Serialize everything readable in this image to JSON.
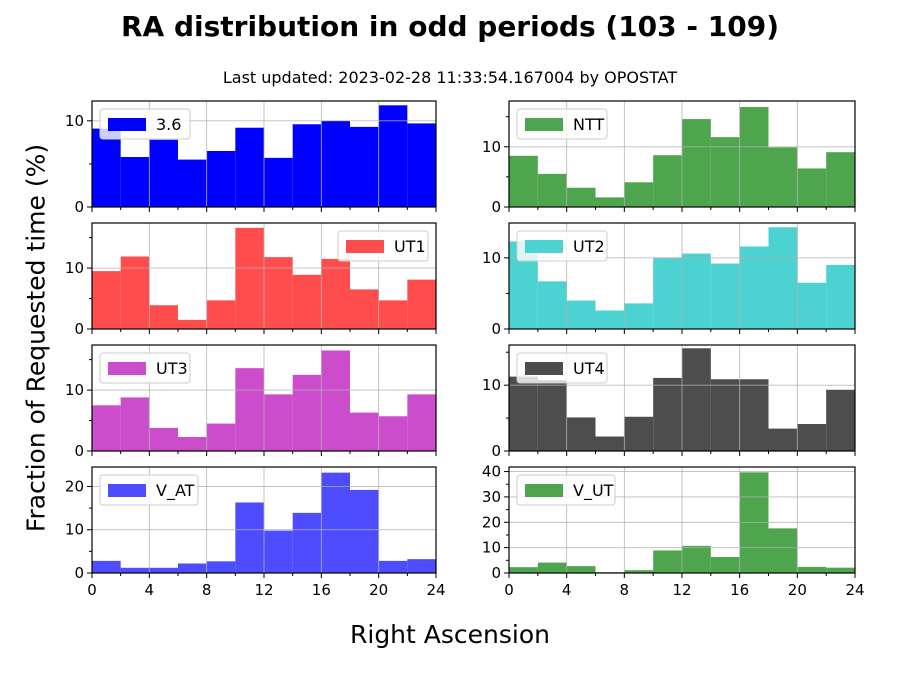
{
  "title": "RA distribution in odd periods (103 - 109)",
  "subtitle": "Last updated: 2023-02-28 11:33:54.167004 by OPOSTAT",
  "ylabel": "Fraction of Requested time (%)",
  "xlabel": "Right Ascension",
  "chart_data": [
    {
      "type": "bar",
      "name": "3.6",
      "color": "#0000ff",
      "legend": "top-left",
      "grid": true,
      "bin_edges": [
        0,
        2,
        4,
        6,
        8,
        10,
        12,
        14,
        16,
        18,
        20,
        22,
        24
      ],
      "values": [
        9.1,
        5.8,
        7.8,
        5.5,
        6.5,
        9.2,
        5.7,
        9.6,
        10.0,
        9.3,
        11.8,
        9.7
      ],
      "xlim": [
        0,
        24
      ],
      "ylim": [
        0,
        12.3
      ],
      "yticks": [
        0,
        10
      ],
      "xticks": [
        0,
        4,
        8,
        12,
        16,
        20,
        24
      ],
      "show_xticklabels": false
    },
    {
      "type": "bar",
      "name": "NTT",
      "color": "#4ea54e",
      "legend": "top-left",
      "grid": true,
      "bin_edges": [
        0,
        2,
        4,
        6,
        8,
        10,
        12,
        14,
        16,
        18,
        20,
        22,
        24
      ],
      "values": [
        8.5,
        5.5,
        3.2,
        1.6,
        4.1,
        8.6,
        14.6,
        11.6,
        16.6,
        9.9,
        6.4,
        9.1
      ],
      "xlim": [
        0,
        24
      ],
      "ylim": [
        0,
        17.6
      ],
      "yticks": [
        0,
        10
      ],
      "xticks": [
        0,
        4,
        8,
        12,
        16,
        20,
        24
      ],
      "show_xticklabels": false
    },
    {
      "type": "bar",
      "name": "UT1",
      "color": "#ff4d4d",
      "legend": "top-right",
      "grid": true,
      "bin_edges": [
        0,
        2,
        4,
        6,
        8,
        10,
        12,
        14,
        16,
        18,
        20,
        22,
        24
      ],
      "values": [
        9.5,
        11.9,
        3.9,
        1.5,
        4.7,
        16.6,
        11.8,
        8.9,
        11.5,
        6.5,
        4.7,
        8.1
      ],
      "xlim": [
        0,
        24
      ],
      "ylim": [
        0,
        17.4
      ],
      "yticks": [
        0,
        10
      ],
      "xticks": [
        0,
        4,
        8,
        12,
        16,
        20,
        24
      ],
      "show_xticklabels": false
    },
    {
      "type": "bar",
      "name": "UT2",
      "color": "#4dd2d2",
      "legend": "top-left",
      "grid": true,
      "bin_edges": [
        0,
        2,
        4,
        6,
        8,
        10,
        12,
        14,
        16,
        18,
        20,
        22,
        24
      ],
      "values": [
        12.3,
        6.7,
        4.0,
        2.6,
        3.6,
        10.0,
        10.6,
        9.2,
        11.6,
        14.3,
        6.5,
        9.0
      ],
      "xlim": [
        0,
        24
      ],
      "ylim": [
        0,
        14.9
      ],
      "yticks": [
        0,
        10
      ],
      "xticks": [
        0,
        4,
        8,
        12,
        16,
        20,
        24
      ],
      "show_xticklabels": false
    },
    {
      "type": "bar",
      "name": "UT3",
      "color": "#cc4dcc",
      "legend": "top-left",
      "grid": true,
      "bin_edges": [
        0,
        2,
        4,
        6,
        8,
        10,
        12,
        14,
        16,
        18,
        20,
        22,
        24
      ],
      "values": [
        7.5,
        8.8,
        3.8,
        2.3,
        4.5,
        13.6,
        9.3,
        12.5,
        16.5,
        6.3,
        5.7,
        9.3
      ],
      "xlim": [
        0,
        24
      ],
      "ylim": [
        0,
        17.4
      ],
      "yticks": [
        0,
        10
      ],
      "xticks": [
        0,
        4,
        8,
        12,
        16,
        20,
        24
      ],
      "show_xticklabels": false
    },
    {
      "type": "bar",
      "name": "UT4",
      "color": "#4d4d4d",
      "legend": "top-left",
      "grid": true,
      "bin_edges": [
        0,
        2,
        4,
        6,
        8,
        10,
        12,
        14,
        16,
        18,
        20,
        22,
        24
      ],
      "values": [
        11.3,
        10.8,
        5.1,
        2.2,
        5.2,
        11.1,
        15.6,
        10.9,
        10.9,
        3.4,
        4.1,
        9.3
      ],
      "xlim": [
        0,
        24
      ],
      "ylim": [
        0,
        16.1
      ],
      "yticks": [
        0,
        10
      ],
      "xticks": [
        0,
        4,
        8,
        12,
        16,
        20,
        24
      ],
      "show_xticklabels": false
    },
    {
      "type": "bar",
      "name": "V_AT",
      "color": "#4d4dff",
      "legend": "top-left",
      "grid": true,
      "bin_edges": [
        0,
        2,
        4,
        6,
        8,
        10,
        12,
        14,
        16,
        18,
        20,
        22,
        24
      ],
      "values": [
        2.8,
        1.2,
        1.2,
        2.2,
        2.7,
        16.3,
        9.8,
        13.9,
        23.2,
        19.2,
        2.8,
        3.2
      ],
      "xlim": [
        0,
        24
      ],
      "ylim": [
        0,
        24.5
      ],
      "yticks": [
        0,
        10,
        20
      ],
      "xticks": [
        0,
        4,
        8,
        12,
        16,
        20,
        24
      ],
      "xticklabels": [
        "0",
        "4",
        "8",
        "12",
        "16",
        "20",
        "24"
      ],
      "show_xticklabels": true
    },
    {
      "type": "bar",
      "name": "V_UT",
      "color": "#4ea54e",
      "legend": "top-left",
      "grid": true,
      "bin_edges": [
        0,
        2,
        4,
        6,
        8,
        10,
        12,
        14,
        16,
        18,
        20,
        22,
        24
      ],
      "values": [
        2.3,
        4.1,
        2.7,
        0.3,
        1.1,
        8.9,
        10.7,
        6.3,
        39.7,
        17.6,
        2.4,
        2.1
      ],
      "xlim": [
        0,
        24
      ],
      "ylim": [
        0,
        41.8
      ],
      "yticks": [
        0,
        10,
        20,
        30,
        40
      ],
      "xticks": [
        0,
        4,
        8,
        12,
        16,
        20,
        24
      ],
      "xticklabels": [
        "0",
        "4",
        "8",
        "12",
        "16",
        "20",
        "24"
      ],
      "show_xticklabels": true
    }
  ]
}
